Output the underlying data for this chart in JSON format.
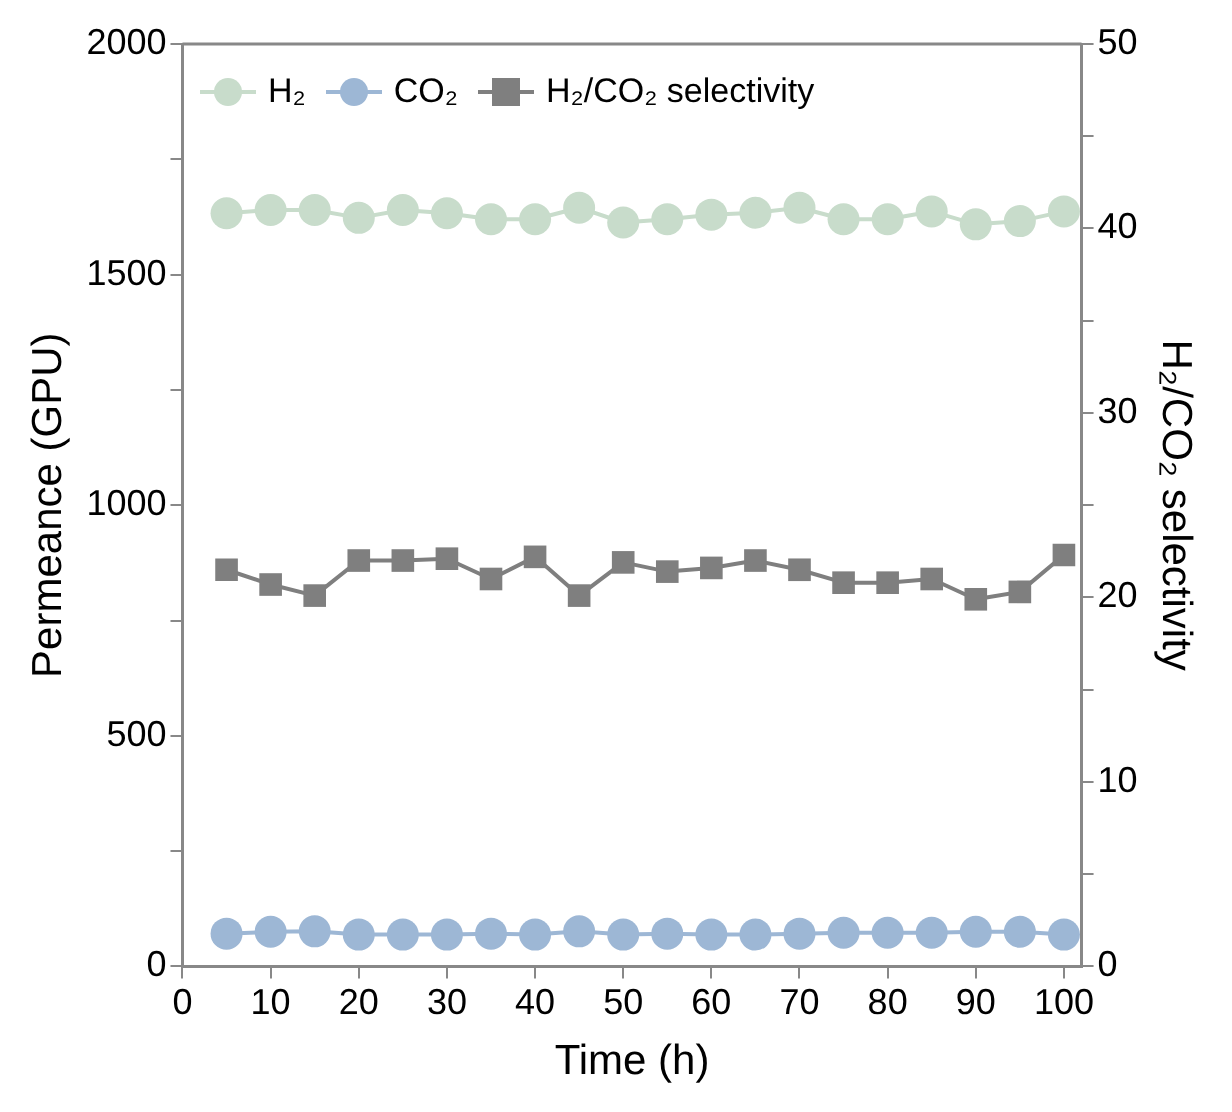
{
  "chart_data": {
    "type": "line",
    "xlabel": "Time (h)",
    "ylabel": "Permeance (GPU)",
    "y2label": "H₂/CO₂ selectivity",
    "x": [
      5,
      10,
      15,
      20,
      25,
      30,
      35,
      40,
      45,
      50,
      55,
      60,
      65,
      70,
      75,
      80,
      85,
      90,
      95,
      100
    ],
    "series": [
      {
        "name": "H₂",
        "color": "#c8dccb",
        "marker": "circle",
        "values": [
          1633,
          1640,
          1640,
          1623,
          1640,
          1633,
          1620,
          1620,
          1645,
          1613,
          1620,
          1630,
          1634,
          1645,
          1620,
          1620,
          1637,
          1609,
          1616,
          1637
        ]
      },
      {
        "name": "CO₂",
        "color": "#9db7d5",
        "marker": "circle",
        "values": [
          71,
          75,
          76,
          69,
          69,
          69,
          71,
          69,
          76,
          69,
          71,
          69,
          69,
          71,
          73,
          73,
          73,
          75,
          75,
          69
        ]
      },
      {
        "name": "H₂/CO₂ selectivity",
        "color": "#7f7f7f",
        "marker": "square",
        "axis": "y2",
        "values": [
          21.5,
          20.7,
          20.1,
          22.0,
          22.0,
          22.1,
          21.0,
          22.2,
          20.1,
          21.9,
          21.4,
          21.6,
          22.0,
          21.5,
          20.8,
          20.8,
          21.0,
          19.9,
          20.3,
          22.3
        ]
      }
    ],
    "xlim": [
      0,
      102
    ],
    "xticks": [
      0,
      10,
      20,
      30,
      40,
      50,
      60,
      70,
      80,
      90,
      100
    ],
    "ylim": [
      0,
      2000
    ],
    "yticks": [
      0,
      {
        "value": 250,
        "label": null
      },
      500,
      {
        "value": 750,
        "label": null
      },
      1000,
      {
        "value": 1250,
        "label": null
      },
      1500,
      {
        "value": 1750,
        "label": null
      },
      2000
    ],
    "y2lim": [
      0,
      50
    ],
    "y2ticks": [
      0,
      {
        "value": 5,
        "label": null
      },
      10,
      {
        "value": 15,
        "label": null
      },
      20,
      {
        "value": 25,
        "label": null
      },
      30,
      {
        "value": 35,
        "label": null
      },
      40,
      {
        "value": 45,
        "label": null
      },
      50
    ],
    "grid": false,
    "legend": "top left",
    "line_style": "solid"
  }
}
